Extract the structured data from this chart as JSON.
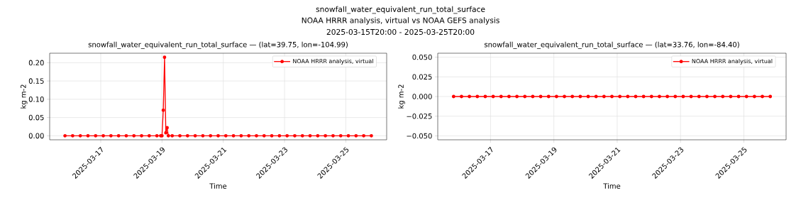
{
  "chart_data": [
    {
      "type": "line",
      "title": "snowfall_water_equivalent_run_total_surface — (lat=39.75, lon=-104.99)",
      "xlabel": "Time",
      "ylabel": "kg m-2",
      "annotations": [
        "snowfall_water_equivalent_run_total_surface",
        "NOAA HRRR analysis, virtual vs NOAA GEFS analysis",
        "2025-03-15T20:00 - 2025-03-25T20:00"
      ],
      "x": [
        "2025-03-15T20:00",
        "2025-03-16T02:00",
        "2025-03-16T08:00",
        "2025-03-16T14:00",
        "2025-03-16T20:00",
        "2025-03-17T02:00",
        "2025-03-17T08:00",
        "2025-03-17T14:00",
        "2025-03-17T20:00",
        "2025-03-18T02:00",
        "2025-03-18T08:00",
        "2025-03-18T14:00",
        "2025-03-18T20:00",
        "2025-03-18T23:00",
        "2025-03-19T00:00",
        "2025-03-19T01:00",
        "2025-03-19T02:00",
        "2025-03-19T03:00",
        "2025-03-19T04:00",
        "2025-03-19T05:00",
        "2025-03-19T08:00",
        "2025-03-19T14:00",
        "2025-03-19T20:00",
        "2025-03-20T02:00",
        "2025-03-20T08:00",
        "2025-03-20T14:00",
        "2025-03-20T20:00",
        "2025-03-21T02:00",
        "2025-03-21T08:00",
        "2025-03-21T14:00",
        "2025-03-21T20:00",
        "2025-03-22T02:00",
        "2025-03-22T08:00",
        "2025-03-22T14:00",
        "2025-03-22T20:00",
        "2025-03-23T02:00",
        "2025-03-23T08:00",
        "2025-03-23T14:00",
        "2025-03-23T20:00",
        "2025-03-24T02:00",
        "2025-03-24T08:00",
        "2025-03-24T14:00",
        "2025-03-24T20:00",
        "2025-03-25T02:00",
        "2025-03-25T08:00",
        "2025-03-25T14:00",
        "2025-03-25T20:00"
      ],
      "series": [
        {
          "name": "NOAA HRRR analysis, virtual",
          "color": "#ff0000",
          "values": [
            0,
            0,
            0,
            0,
            0,
            0,
            0,
            0,
            0,
            0,
            0,
            0,
            0,
            0,
            0,
            0.07,
            0.215,
            0.008,
            0.022,
            0,
            0,
            0,
            0,
            0,
            0,
            0,
            0,
            0,
            0,
            0,
            0,
            0,
            0,
            0,
            0,
            0,
            0,
            0,
            0,
            0,
            0,
            0,
            0,
            0,
            0,
            0,
            0
          ]
        }
      ],
      "xlim": [
        "2025-03-15T08:00",
        "2025-03-26T08:00"
      ],
      "xticks": [
        {
          "value": "2025-03-17",
          "label": "2025-03-17"
        },
        {
          "value": "2025-03-19",
          "label": "2025-03-19"
        },
        {
          "value": "2025-03-21",
          "label": "2025-03-21"
        },
        {
          "value": "2025-03-23",
          "label": "2025-03-23"
        },
        {
          "value": "2025-03-25",
          "label": "2025-03-25"
        }
      ],
      "ylim": [
        -0.011,
        0.226
      ],
      "yticks": [
        {
          "value": 0,
          "label": "0.00"
        },
        {
          "value": 0.05,
          "label": "0.05"
        },
        {
          "value": 0.1,
          "label": "0.10"
        },
        {
          "value": 0.15,
          "label": "0.15"
        },
        {
          "value": 0.2,
          "label": "0.20"
        }
      ],
      "grid": true,
      "legend": "top right",
      "marker": "circle",
      "line_style": "solid"
    },
    {
      "type": "line",
      "title": "snowfall_water_equivalent_run_total_surface — (lat=33.76, lon=-84.40)",
      "xlabel": "Time",
      "ylabel": "kg m-2",
      "x": [
        "2025-03-15T20:00",
        "2025-03-16T02:00",
        "2025-03-16T08:00",
        "2025-03-16T14:00",
        "2025-03-16T20:00",
        "2025-03-17T02:00",
        "2025-03-17T08:00",
        "2025-03-17T14:00",
        "2025-03-17T20:00",
        "2025-03-18T02:00",
        "2025-03-18T08:00",
        "2025-03-18T14:00",
        "2025-03-18T20:00",
        "2025-03-19T02:00",
        "2025-03-19T08:00",
        "2025-03-19T14:00",
        "2025-03-19T20:00",
        "2025-03-20T02:00",
        "2025-03-20T08:00",
        "2025-03-20T14:00",
        "2025-03-20T20:00",
        "2025-03-21T02:00",
        "2025-03-21T08:00",
        "2025-03-21T14:00",
        "2025-03-21T20:00",
        "2025-03-22T02:00",
        "2025-03-22T08:00",
        "2025-03-22T14:00",
        "2025-03-22T20:00",
        "2025-03-23T02:00",
        "2025-03-23T08:00",
        "2025-03-23T14:00",
        "2025-03-23T20:00",
        "2025-03-24T02:00",
        "2025-03-24T08:00",
        "2025-03-24T14:00",
        "2025-03-24T20:00",
        "2025-03-25T02:00",
        "2025-03-25T08:00",
        "2025-03-25T14:00",
        "2025-03-25T20:00"
      ],
      "series": [
        {
          "name": "NOAA HRRR analysis, virtual",
          "color": "#ff0000",
          "values": [
            0,
            0,
            0,
            0,
            0,
            0,
            0,
            0,
            0,
            0,
            0,
            0,
            0,
            0,
            0,
            0,
            0,
            0,
            0,
            0,
            0,
            0,
            0,
            0,
            0,
            0,
            0,
            0,
            0,
            0,
            0,
            0,
            0,
            0,
            0,
            0,
            0,
            0,
            0,
            0,
            0
          ]
        }
      ],
      "xlim": [
        "2025-03-15T08:00",
        "2025-03-26T08:00"
      ],
      "xticks": [
        {
          "value": "2025-03-17",
          "label": "2025-03-17"
        },
        {
          "value": "2025-03-19",
          "label": "2025-03-19"
        },
        {
          "value": "2025-03-21",
          "label": "2025-03-21"
        },
        {
          "value": "2025-03-23",
          "label": "2025-03-23"
        },
        {
          "value": "2025-03-25",
          "label": "2025-03-25"
        }
      ],
      "ylim": [
        -0.055,
        0.055
      ],
      "yticks": [
        {
          "value": -0.05,
          "label": "−0.050"
        },
        {
          "value": -0.025,
          "label": "−0.025"
        },
        {
          "value": 0,
          "label": "0.000"
        },
        {
          "value": 0.025,
          "label": "0.025"
        },
        {
          "value": 0.05,
          "label": "0.050"
        }
      ],
      "grid": true,
      "legend": "top right",
      "marker": "circle",
      "line_style": "solid"
    }
  ]
}
